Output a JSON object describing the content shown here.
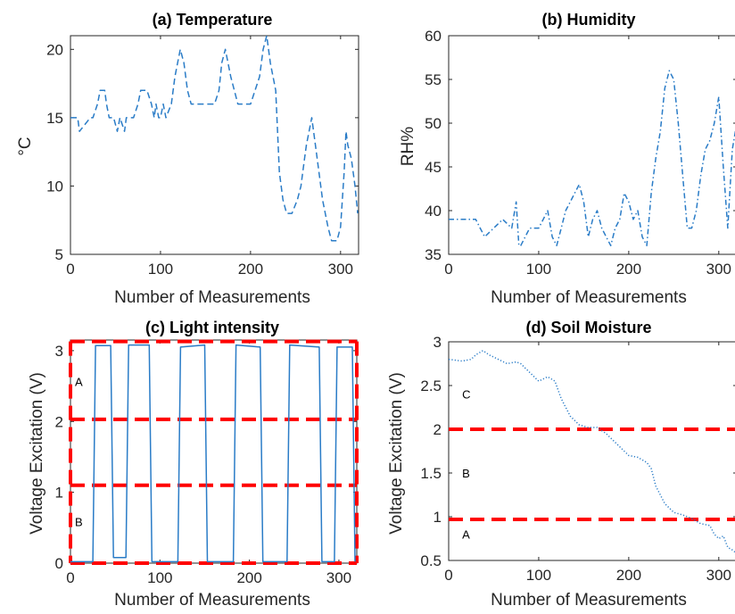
{
  "chart_data": [
    {
      "id": "temperature",
      "type": "line",
      "title": "(a) Temperature",
      "xlabel": "Number of Measurements",
      "ylabel": "°C",
      "xlim": [
        0,
        320
      ],
      "ylim": [
        5,
        21
      ],
      "xticks": [
        0,
        100,
        200,
        300
      ],
      "yticks": [
        5,
        10,
        15,
        20
      ],
      "grid": false,
      "line_style": "dashed",
      "line_color": "#2a7cc7",
      "series": [
        {
          "x": [
            0,
            8,
            10,
            22,
            25,
            30,
            33,
            38,
            40,
            43,
            48,
            52,
            55,
            60,
            62,
            70,
            75,
            78,
            80,
            85,
            90,
            93,
            95,
            98,
            100,
            103,
            106,
            112,
            116,
            122,
            126,
            130,
            134,
            140,
            150,
            160,
            165,
            168,
            172,
            178,
            182,
            186,
            190,
            200,
            210,
            214,
            218,
            222,
            228,
            232,
            236,
            240,
            246,
            252,
            256,
            260,
            262,
            265,
            268,
            272,
            276,
            280,
            286,
            290,
            296,
            300,
            304,
            306,
            308,
            312,
            316,
            319
          ],
          "y": [
            15,
            15,
            14,
            15,
            15,
            16,
            17,
            17,
            16,
            15,
            15,
            14,
            15,
            14,
            15,
            15,
            16,
            17,
            17,
            17,
            16,
            15,
            16,
            15,
            15,
            16,
            15,
            16,
            18,
            20,
            19,
            17,
            16,
            16,
            16,
            16,
            17,
            19,
            20,
            18,
            17,
            16,
            16,
            16,
            18,
            20,
            21,
            19,
            17,
            11,
            9,
            8,
            8,
            9,
            10,
            12,
            13,
            14,
            15,
            13,
            11,
            9,
            7,
            6,
            6,
            7,
            11,
            14,
            13,
            12,
            10,
            8
          ]
        }
      ]
    },
    {
      "id": "humidity",
      "type": "line",
      "title": "(b) Humidity",
      "xlabel": "Number of Measurements",
      "ylabel": "RH%",
      "xlim": [
        0,
        320
      ],
      "ylim": [
        35,
        60
      ],
      "xticks": [
        0,
        100,
        200,
        300
      ],
      "yticks": [
        35,
        40,
        45,
        50,
        55,
        60
      ],
      "grid": false,
      "line_style": "dash-dot",
      "line_color": "#2a7cc7",
      "series": [
        {
          "x": [
            0,
            20,
            30,
            35,
            40,
            50,
            60,
            70,
            75,
            78,
            80,
            85,
            90,
            100,
            105,
            110,
            115,
            120,
            125,
            130,
            135,
            140,
            145,
            150,
            155,
            160,
            165,
            170,
            175,
            180,
            185,
            190,
            195,
            200,
            205,
            210,
            215,
            220,
            225,
            230,
            235,
            240,
            245,
            250,
            255,
            260,
            265,
            270,
            275,
            280,
            285,
            290,
            295,
            300,
            305,
            310,
            315,
            320,
            325
          ],
          "y": [
            39,
            39,
            39,
            38,
            37,
            38,
            39,
            38,
            41,
            36,
            36,
            37,
            38,
            38,
            39,
            40,
            37,
            36,
            38,
            40,
            41,
            42,
            43,
            41,
            37,
            39,
            40,
            38,
            37,
            36,
            38,
            39,
            42,
            41,
            39,
            40,
            37,
            36,
            42,
            46,
            49,
            54,
            56,
            55,
            50,
            44,
            38,
            38,
            40,
            44,
            47,
            48,
            50,
            53,
            45,
            38,
            47,
            50,
            51
          ]
        }
      ]
    },
    {
      "id": "light",
      "type": "line",
      "title": "(c) Light intensity",
      "xlabel": "Number of Measurements",
      "ylabel": "Voltage Excitation (V)",
      "xlim": [
        0,
        320
      ],
      "ylim": [
        0,
        3.15
      ],
      "xticks": [
        0,
        100,
        200,
        300
      ],
      "yticks": [
        0,
        1,
        2,
        3
      ],
      "grid": false,
      "line_style": "solid",
      "line_color": "#2a7cc7",
      "series": [
        {
          "x": [
            0,
            25,
            28,
            45,
            48,
            62,
            65,
            88,
            91,
            120,
            123,
            150,
            153,
            182,
            185,
            212,
            215,
            242,
            245,
            278,
            281,
            295,
            298,
            315,
            318
          ],
          "y": [
            0.02,
            0.02,
            3.07,
            3.07,
            0.08,
            0.08,
            3.08,
            3.08,
            0.02,
            0.02,
            3.05,
            3.08,
            0.02,
            0.02,
            3.08,
            3.05,
            0.02,
            0.02,
            3.08,
            3.05,
            0.02,
            0.02,
            3.05,
            3.05,
            0.02
          ]
        }
      ],
      "threshold_lines": [
        2.03,
        1.1
      ],
      "boundary_lines": [
        3.13,
        0.0
      ],
      "region_labels": [
        {
          "text": "A",
          "x": 5,
          "y": 2.5
        },
        {
          "text": "B",
          "x": 5,
          "y": 0.52
        }
      ],
      "highlight_color": "#ff0000"
    },
    {
      "id": "soil",
      "type": "line",
      "title": "(d) Soil Moisture",
      "xlabel": "Number of Measurements",
      "ylabel": "Voltage Excitation (V)",
      "xlim": [
        0,
        320
      ],
      "ylim": [
        0.5,
        3
      ],
      "xticks": [
        0,
        100,
        200,
        300
      ],
      "yticks": [
        0.5,
        1,
        1.5,
        2,
        2.5,
        3
      ],
      "ytick_labels": [
        "0.5",
        "1",
        "1.5",
        "2",
        "2.5",
        "3"
      ],
      "grid": false,
      "line_style": "dotted",
      "line_color": "#2a7cc7",
      "series": [
        {
          "x": [
            0,
            15,
            25,
            30,
            38,
            45,
            55,
            65,
            75,
            80,
            90,
            100,
            110,
            118,
            125,
            135,
            145,
            155,
            165,
            175,
            185,
            195,
            200,
            210,
            220,
            225,
            230,
            240,
            250,
            260,
            270,
            280,
            290,
            295,
            300,
            305,
            310,
            315,
            320
          ],
          "y": [
            2.8,
            2.78,
            2.8,
            2.85,
            2.9,
            2.85,
            2.8,
            2.75,
            2.77,
            2.75,
            2.65,
            2.55,
            2.6,
            2.55,
            2.35,
            2.15,
            2.05,
            2.02,
            2.02,
            1.95,
            1.85,
            1.75,
            1.7,
            1.68,
            1.62,
            1.55,
            1.35,
            1.15,
            1.05,
            1.02,
            0.98,
            0.92,
            0.9,
            0.8,
            0.75,
            0.78,
            0.65,
            0.62,
            0.58
          ]
        }
      ],
      "threshold_lines": [
        2.0,
        0.97
      ],
      "region_labels": [
        {
          "text": "C",
          "x": 15,
          "y": 2.35
        },
        {
          "text": "B",
          "x": 15,
          "y": 1.45
        },
        {
          "text": "A",
          "x": 15,
          "y": 0.75
        }
      ],
      "highlight_color": "#ff0000"
    }
  ]
}
